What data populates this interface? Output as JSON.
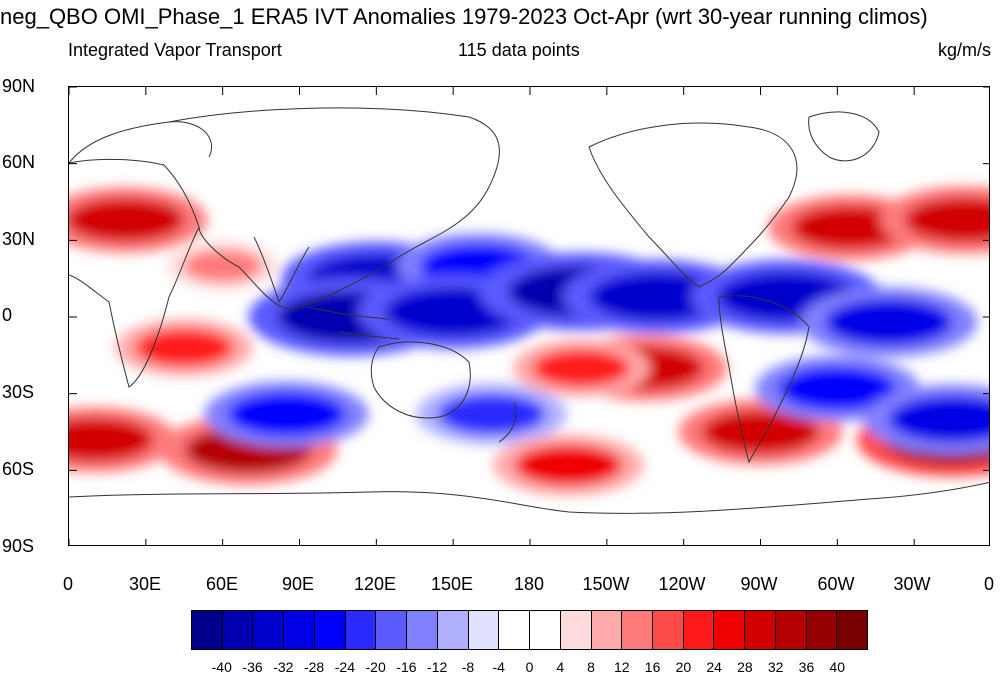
{
  "title": "neg_QBO OMI_Phase_1 ERA5 IVT Anomalies 1979-2023 Oct-Apr (wrt 30-year running climos)",
  "subtitle_left": "Integrated Vapor Transport",
  "subtitle_center": "115 data points",
  "subtitle_right": "kg/m/s",
  "y_ticks": [
    "90N",
    "60N",
    "30N",
    "0",
    "30S",
    "60S",
    "90S"
  ],
  "x_ticks": [
    "0",
    "30E",
    "60E",
    "90E",
    "120E",
    "150E",
    "180",
    "150W",
    "120W",
    "90W",
    "60W",
    "30W",
    "0"
  ],
  "colorbar": {
    "labels": [
      "-40",
      "-36",
      "-32",
      "-28",
      "-24",
      "-20",
      "-16",
      "-12",
      "-8",
      "-4",
      "0",
      "4",
      "8",
      "12",
      "16",
      "20",
      "24",
      "28",
      "32",
      "36",
      "40"
    ],
    "colors": [
      "#00008c",
      "#0000b0",
      "#0000cd",
      "#0000e6",
      "#0000ff",
      "#2a2aff",
      "#5a5aff",
      "#8080ff",
      "#b0b0ff",
      "#e0e0ff",
      "#ffffff",
      "#ffffff",
      "#ffdcdc",
      "#ffaaaa",
      "#ff7a7a",
      "#ff4a4a",
      "#ff1a1a",
      "#f00000",
      "#d20000",
      "#b40000",
      "#960000",
      "#780000"
    ]
  },
  "chart_data": {
    "type": "heatmap",
    "title": "neg_QBO OMI_Phase_1 ERA5 IVT Anomalies 1979-2023 Oct-Apr (wrt 30-year running climos)",
    "variable": "Integrated Vapor Transport",
    "units": "kg/m/s",
    "sample_size": "115 data points",
    "lon_range": [
      0,
      360
    ],
    "lat_range": [
      -90,
      90
    ],
    "contour_levels": [
      -40,
      -36,
      -32,
      -28,
      -24,
      -20,
      -16,
      -12,
      -8,
      -4,
      0,
      4,
      8,
      12,
      16,
      20,
      24,
      28,
      32,
      36,
      40
    ],
    "features": [
      {
        "lon": 22,
        "lat": 38,
        "value": 28
      },
      {
        "lon": 60,
        "lat": 20,
        "value": 12
      },
      {
        "lon": 120,
        "lat": 15,
        "value": -36
      },
      {
        "lon": 160,
        "lat": 20,
        "value": -28
      },
      {
        "lon": 110,
        "lat": 0,
        "value": -40
      },
      {
        "lon": 150,
        "lat": 2,
        "value": -36
      },
      {
        "lon": 200,
        "lat": 10,
        "value": -40
      },
      {
        "lon": 230,
        "lat": 8,
        "value": -36
      },
      {
        "lon": 280,
        "lat": 8,
        "value": -36
      },
      {
        "lon": 320,
        "lat": -2,
        "value": -32
      },
      {
        "lon": 305,
        "lat": 35,
        "value": 28
      },
      {
        "lon": 350,
        "lat": 38,
        "value": 30
      },
      {
        "lon": 225,
        "lat": -20,
        "value": 28
      },
      {
        "lon": 270,
        "lat": -45,
        "value": 28
      },
      {
        "lon": 345,
        "lat": -48,
        "value": 36
      },
      {
        "lon": 70,
        "lat": -52,
        "value": 32
      },
      {
        "lon": 10,
        "lat": -48,
        "value": 28
      },
      {
        "lon": 85,
        "lat": -38,
        "value": -28
      },
      {
        "lon": 165,
        "lat": -38,
        "value": -24
      },
      {
        "lon": 195,
        "lat": -58,
        "value": 24
      },
      {
        "lon": 300,
        "lat": -28,
        "value": -28
      },
      {
        "lon": 345,
        "lat": -40,
        "value": -32
      },
      {
        "lon": 45,
        "lat": -12,
        "value": 20
      },
      {
        "lon": 200,
        "lat": -20,
        "value": 20
      }
    ]
  }
}
